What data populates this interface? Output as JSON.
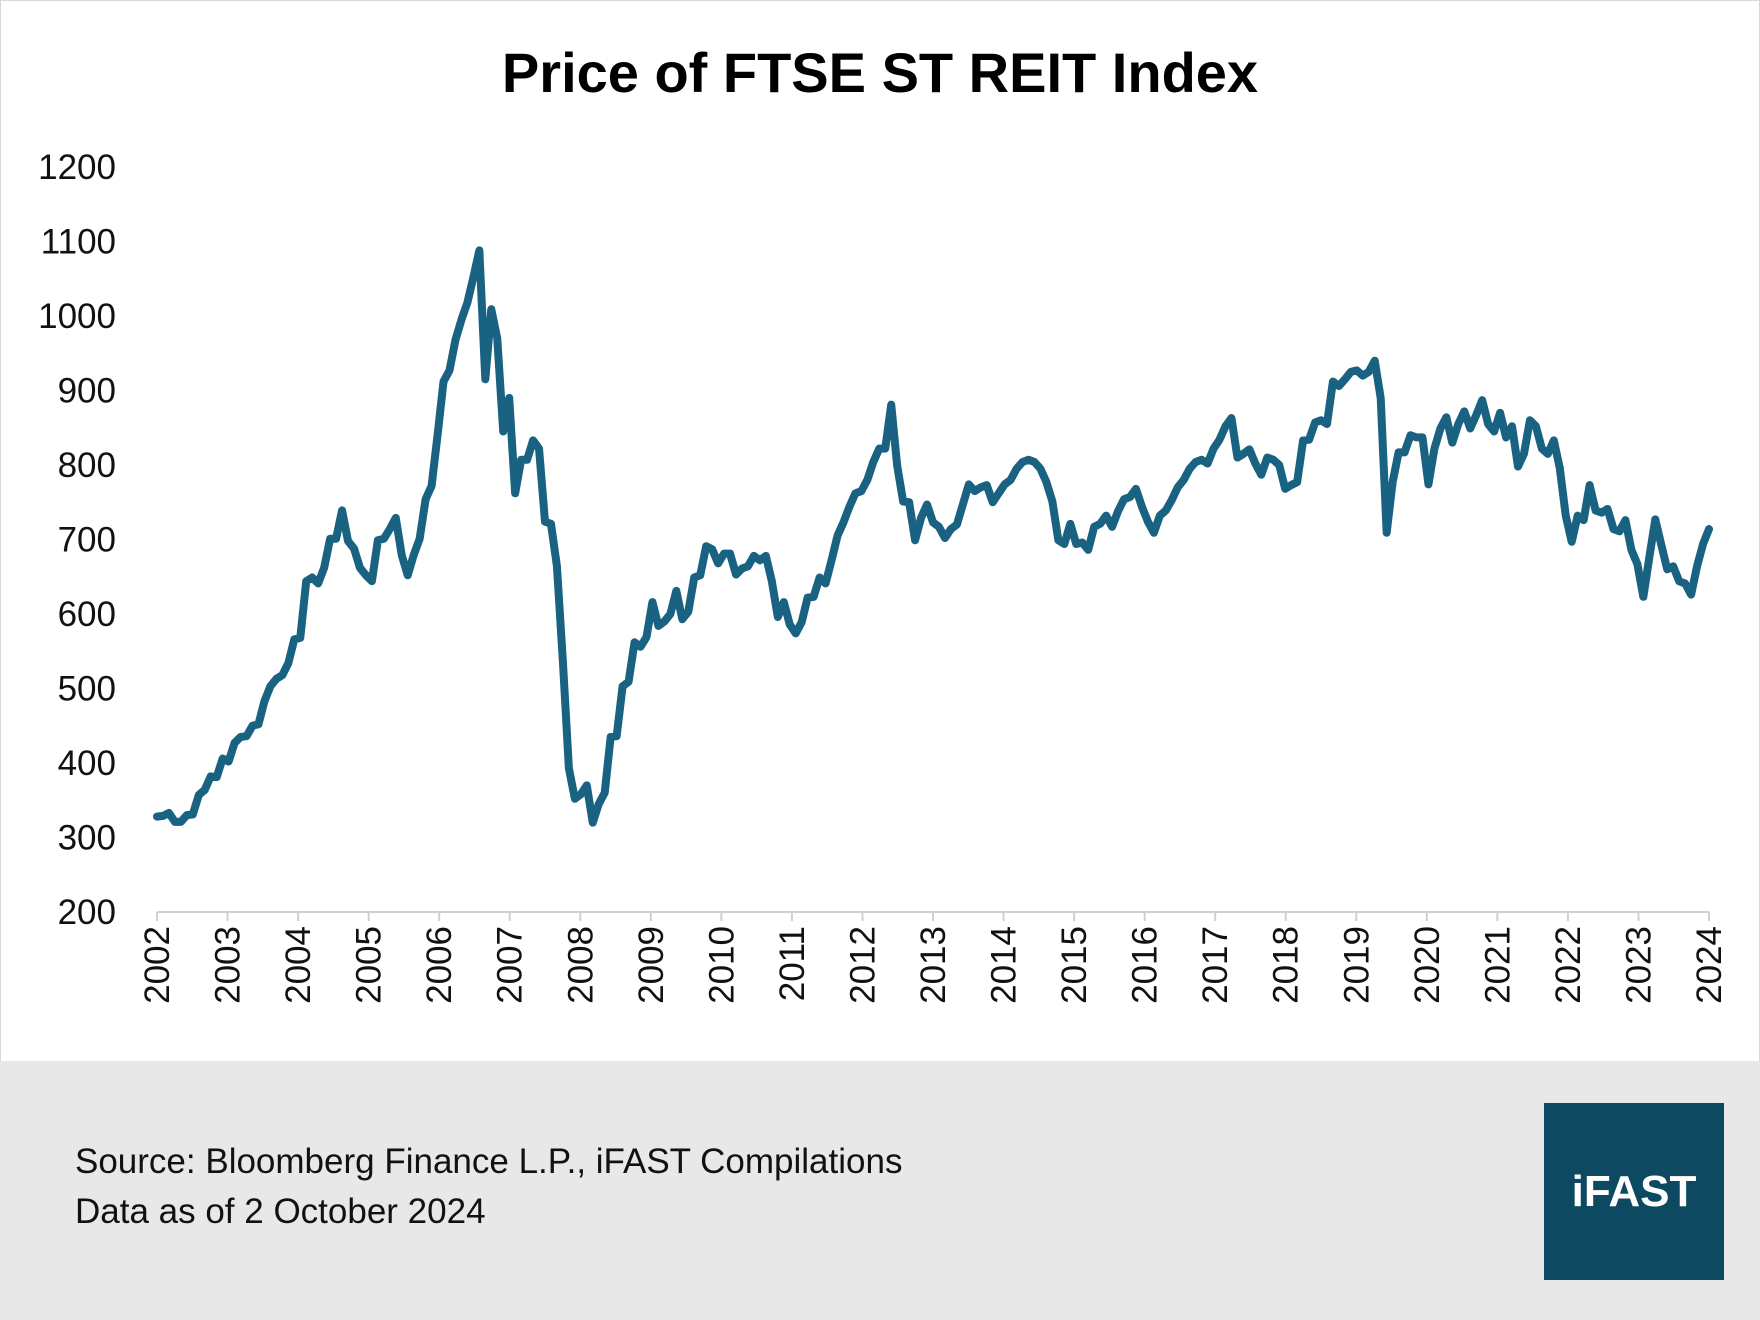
{
  "chart_data": {
    "type": "line",
    "title": "Price of FTSE ST REIT Index",
    "xlabel": "",
    "ylabel": "",
    "ylim": [
      200,
      1200
    ],
    "yticks": [
      "200",
      "300",
      "400",
      "500",
      "600",
      "700",
      "800",
      "900",
      "1000",
      "1100",
      "1200"
    ],
    "xlim": [
      2002,
      2024
    ],
    "xticks": [
      "2002",
      "2003",
      "2004",
      "2005",
      "2006",
      "2007",
      "2008",
      "2009",
      "2010",
      "2011",
      "2012",
      "2013",
      "2014",
      "2015",
      "2016",
      "2017",
      "2018",
      "2019",
      "2020",
      "2021",
      "2022",
      "2023",
      "2024"
    ],
    "grid": false,
    "legend": "none",
    "line_color": "#1a6282",
    "series": [
      {
        "values": [
          328,
          329,
          333,
          321,
          321,
          330,
          331,
          357,
          364,
          382,
          381,
          406,
          402,
          427,
          435,
          436,
          450,
          452,
          483,
          503,
          513,
          518,
          534,
          566,
          568,
          644,
          649,
          641,
          662,
          701,
          701,
          739,
          698,
          688,
          662,
          652,
          644,
          699,
          701,
          714,
          729,
          679,
          652,
          679,
          701,
          754,
          772,
          840,
          912,
          927,
          968,
          995,
          1018,
          1052,
          1088,
          915,
          1009,
          970,
          845,
          890,
          762,
          807,
          807,
          833,
          822,
          724,
          721,
          664,
          536,
          393,
          352,
          358,
          370,
          320,
          345,
          360,
          435,
          436,
          503,
          509,
          562,
          556,
          569,
          616,
          584,
          590,
          600,
          631,
          593,
          603,
          649,
          652,
          691,
          687,
          668,
          681,
          681,
          653,
          661,
          664,
          678,
          672,
          678,
          644,
          596,
          616,
          586,
          574,
          589,
          622,
          623,
          649,
          641,
          672,
          705,
          723,
          744,
          762,
          765,
          780,
          804,
          822,
          822,
          881,
          799,
          751,
          750,
          699,
          729,
          747,
          723,
          717,
          702,
          714,
          720,
          747,
          774,
          765,
          770,
          773,
          750,
          762,
          774,
          780,
          795,
          804,
          807,
          804,
          795,
          777,
          751,
          699,
          694,
          721,
          694,
          696,
          686,
          717,
          721,
          732,
          717,
          738,
          754,
          757,
          768,
          744,
          724,
          709,
          732,
          739,
          753,
          770,
          780,
          795,
          804,
          807,
          802,
          822,
          834,
          852,
          863,
          810,
          815,
          821,
          802,
          787,
          810,
          807,
          800,
          768,
          773,
          777,
          833,
          834,
          857,
          860,
          855,
          912,
          906,
          915,
          925,
          927,
          920,
          925,
          940,
          890,
          709,
          777,
          817,
          817,
          840,
          837,
          837,
          774,
          822,
          849,
          864,
          830,
          855,
          872,
          849,
          867,
          887,
          855,
          845,
          870,
          837,
          852,
          798,
          815,
          860,
          852,
          822,
          815,
          833,
          796,
          732,
          697,
          732,
          726,
          773,
          739,
          736,
          741,
          714,
          711,
          726,
          686,
          667,
          623,
          676,
          727,
          693,
          660,
          664,
          644,
          641,
          626,
          664,
          694,
          714
        ]
      }
    ]
  },
  "footer": {
    "source": "Source: Bloomberg Finance L.P., iFAST Compilations",
    "date": "Data as of 2 October 2024",
    "logo": "iFAST",
    "logo_color": "#0d4a62",
    "background": "#e8e8e8"
  }
}
